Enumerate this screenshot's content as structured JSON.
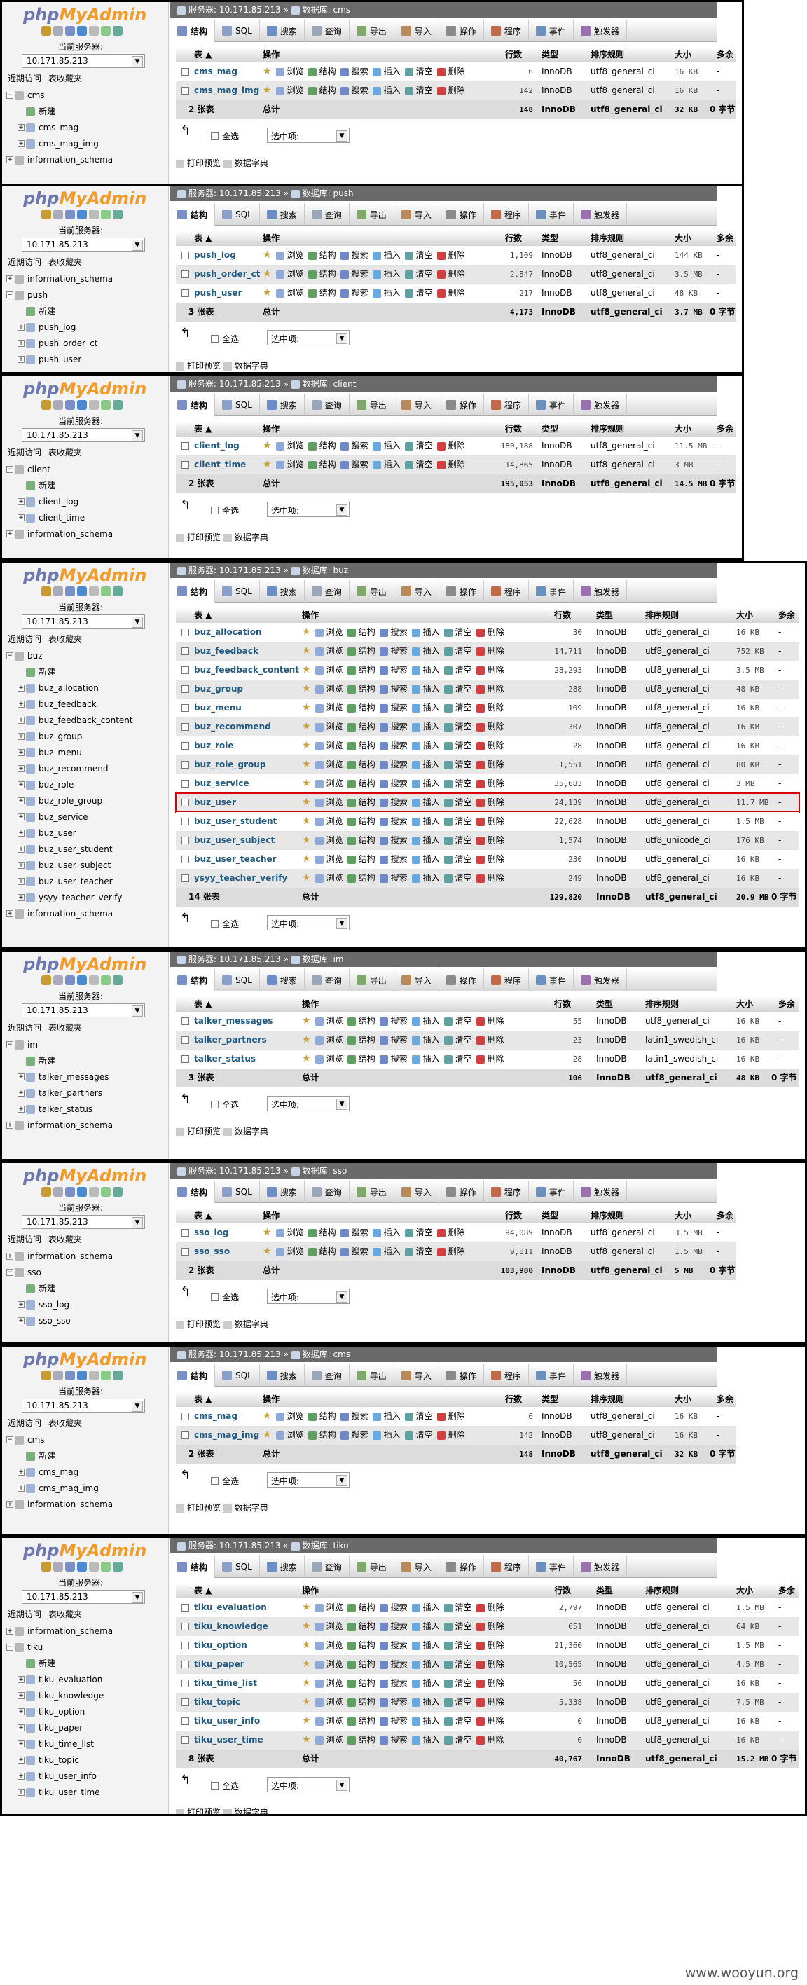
{
  "watermark": "www.wooyun.org",
  "common": {
    "logo_php": "php",
    "logo_admin": "MyAdmin",
    "server_label": "当前服务器:",
    "server_value": "10.171.85.213",
    "recent_tab": "近期访问",
    "fav_tab": "表收藏夹",
    "new_label": "新建",
    "tabs": [
      "结构",
      "SQL",
      "搜索",
      "查询",
      "导出",
      "导入",
      "操作",
      "程序",
      "事件",
      "触发器"
    ],
    "col_headers": [
      "表",
      "操作",
      "行数",
      "类型",
      "排序规则",
      "大小",
      "多余"
    ],
    "actions": [
      "浏览",
      "结构",
      "搜索",
      "插入",
      "清空",
      "删除"
    ],
    "check_all": "全选",
    "with_selected": "选中项:",
    "print_view": "打印预览",
    "data_dict": "数据字典",
    "sum_label": "总计",
    "breadcrumb_server": "服务器: 10.171.85.213",
    "breadcrumb_db_prefix": "数据库: ",
    "colors": {
      "link": "#235a81",
      "header_grad": "#d4d4d4",
      "breadcrumb": "#6a6a6a"
    }
  },
  "panels": [
    {
      "db": "cms",
      "sidebar": [
        {
          "label": "cms",
          "level": 0,
          "type": "db"
        },
        {
          "label": "新建",
          "level": 1,
          "type": "new"
        },
        {
          "label": "cms_mag",
          "level": 1,
          "type": "table"
        },
        {
          "label": "cms_mag_img",
          "level": 1,
          "type": "table"
        },
        {
          "label": "information_schema",
          "level": 0,
          "type": "db"
        }
      ],
      "tables": [
        {
          "name": "cms_mag",
          "rows": "6",
          "type": "InnoDB",
          "collation": "utf8_general_ci",
          "size": "16 KB",
          "overhead": "-"
        },
        {
          "name": "cms_mag_img",
          "rows": "142",
          "type": "InnoDB",
          "collation": "utf8_general_ci",
          "size": "16 KB",
          "overhead": "-"
        }
      ],
      "total": {
        "count": "2 张表",
        "rows": "148",
        "type": "InnoDB",
        "collation": "utf8_general_ci",
        "size": "32 KB",
        "overhead": "0 字节"
      }
    },
    {
      "db": "push",
      "sidebar": [
        {
          "label": "information_schema",
          "level": 0,
          "type": "db"
        },
        {
          "label": "push",
          "level": 0,
          "type": "db"
        },
        {
          "label": "新建",
          "level": 1,
          "type": "new"
        },
        {
          "label": "push_log",
          "level": 1,
          "type": "table"
        },
        {
          "label": "push_order_ct",
          "level": 1,
          "type": "table"
        },
        {
          "label": "push_user",
          "level": 1,
          "type": "table"
        }
      ],
      "tables": [
        {
          "name": "push_log",
          "rows": "1,109",
          "type": "InnoDB",
          "collation": "utf8_general_ci",
          "size": "144 KB",
          "overhead": "-"
        },
        {
          "name": "push_order_ct",
          "rows": "2,847",
          "type": "InnoDB",
          "collation": "utf8_general_ci",
          "size": "3.5 MB",
          "overhead": "-"
        },
        {
          "name": "push_user",
          "rows": "217",
          "type": "InnoDB",
          "collation": "utf8_general_ci",
          "size": "48 KB",
          "overhead": "-"
        }
      ],
      "total": {
        "count": "3 张表",
        "rows": "4,173",
        "type": "InnoDB",
        "collation": "utf8_general_ci",
        "size": "3.7 MB",
        "overhead": "0 字节"
      }
    },
    {
      "db": "client",
      "sidebar": [
        {
          "label": "client",
          "level": 0,
          "type": "db"
        },
        {
          "label": "新建",
          "level": 1,
          "type": "new"
        },
        {
          "label": "client_log",
          "level": 1,
          "type": "table"
        },
        {
          "label": "client_time",
          "level": 1,
          "type": "table"
        },
        {
          "label": "information_schema",
          "level": 0,
          "type": "db"
        }
      ],
      "tables": [
        {
          "name": "client_log",
          "rows": "180,188",
          "type": "InnoDB",
          "collation": "utf8_general_ci",
          "size": "11.5 MB",
          "overhead": "-"
        },
        {
          "name": "client_time",
          "rows": "14,865",
          "type": "InnoDB",
          "collation": "utf8_general_ci",
          "size": "3 MB",
          "overhead": "-"
        }
      ],
      "total": {
        "count": "2 张表",
        "rows": "195,053",
        "type": "InnoDB",
        "collation": "utf8_general_ci",
        "size": "14.5 MB",
        "overhead": "0 字节"
      }
    },
    {
      "db": "buz",
      "sidebar": [
        {
          "label": "buz",
          "level": 0,
          "type": "db"
        },
        {
          "label": "新建",
          "level": 1,
          "type": "new"
        },
        {
          "label": "buz_allocation",
          "level": 1,
          "type": "table"
        },
        {
          "label": "buz_feedback",
          "level": 1,
          "type": "table"
        },
        {
          "label": "buz_feedback_content",
          "level": 1,
          "type": "table"
        },
        {
          "label": "buz_group",
          "level": 1,
          "type": "table"
        },
        {
          "label": "buz_menu",
          "level": 1,
          "type": "table"
        },
        {
          "label": "buz_recommend",
          "level": 1,
          "type": "table"
        },
        {
          "label": "buz_role",
          "level": 1,
          "type": "table"
        },
        {
          "label": "buz_role_group",
          "level": 1,
          "type": "table"
        },
        {
          "label": "buz_service",
          "level": 1,
          "type": "table"
        },
        {
          "label": "buz_user",
          "level": 1,
          "type": "table"
        },
        {
          "label": "buz_user_student",
          "level": 1,
          "type": "table"
        },
        {
          "label": "buz_user_subject",
          "level": 1,
          "type": "table"
        },
        {
          "label": "buz_user_teacher",
          "level": 1,
          "type": "table"
        },
        {
          "label": "ysyy_teacher_verify",
          "level": 1,
          "type": "table"
        },
        {
          "label": "information_schema",
          "level": 0,
          "type": "db"
        }
      ],
      "tables": [
        {
          "name": "buz_allocation",
          "rows": "30",
          "type": "InnoDB",
          "collation": "utf8_general_ci",
          "size": "16 KB",
          "overhead": "-"
        },
        {
          "name": "buz_feedback",
          "rows": "14,711",
          "type": "InnoDB",
          "collation": "utf8_general_ci",
          "size": "752 KB",
          "overhead": "-"
        },
        {
          "name": "buz_feedback_content",
          "rows": "28,293",
          "type": "InnoDB",
          "collation": "utf8_general_ci",
          "size": "3.5 MB",
          "overhead": "-"
        },
        {
          "name": "buz_group",
          "rows": "288",
          "type": "InnoDB",
          "collation": "utf8_general_ci",
          "size": "48 KB",
          "overhead": "-"
        },
        {
          "name": "buz_menu",
          "rows": "109",
          "type": "InnoDB",
          "collation": "utf8_general_ci",
          "size": "16 KB",
          "overhead": "-"
        },
        {
          "name": "buz_recommend",
          "rows": "307",
          "type": "InnoDB",
          "collation": "utf8_general_ci",
          "size": "16 KB",
          "overhead": "-"
        },
        {
          "name": "buz_role",
          "rows": "28",
          "type": "InnoDB",
          "collation": "utf8_general_ci",
          "size": "16 KB",
          "overhead": "-"
        },
        {
          "name": "buz_role_group",
          "rows": "1,551",
          "type": "InnoDB",
          "collation": "utf8_general_ci",
          "size": "80 KB",
          "overhead": "-"
        },
        {
          "name": "buz_service",
          "rows": "35,683",
          "type": "InnoDB",
          "collation": "utf8_general_ci",
          "size": "3 MB",
          "overhead": "-"
        },
        {
          "name": "buz_user",
          "rows": "24,139",
          "type": "InnoDB",
          "collation": "utf8_general_ci",
          "size": "11.7 MB",
          "overhead": "-",
          "highlight": true
        },
        {
          "name": "buz_user_student",
          "rows": "22,628",
          "type": "InnoDB",
          "collation": "utf8_general_ci",
          "size": "1.5 MB",
          "overhead": "-"
        },
        {
          "name": "buz_user_subject",
          "rows": "1,574",
          "type": "InnoDB",
          "collation": "utf8_unicode_ci",
          "size": "176 KB",
          "overhead": "-"
        },
        {
          "name": "buz_user_teacher",
          "rows": "230",
          "type": "InnoDB",
          "collation": "utf8_general_ci",
          "size": "16 KB",
          "overhead": "-"
        },
        {
          "name": "ysyy_teacher_verify",
          "rows": "249",
          "type": "InnoDB",
          "collation": "utf8_general_ci",
          "size": "16 KB",
          "overhead": "-"
        }
      ],
      "total": {
        "count": "14 张表",
        "rows": "129,820",
        "type": "InnoDB",
        "collation": "utf8_general_ci",
        "size": "20.9 MB",
        "overhead": "0 字节"
      }
    },
    {
      "db": "im",
      "sidebar": [
        {
          "label": "im",
          "level": 0,
          "type": "db"
        },
        {
          "label": "新建",
          "level": 1,
          "type": "new"
        },
        {
          "label": "talker_messages",
          "level": 1,
          "type": "table"
        },
        {
          "label": "talker_partners",
          "level": 1,
          "type": "table"
        },
        {
          "label": "talker_status",
          "level": 1,
          "type": "table"
        },
        {
          "label": "information_schema",
          "level": 0,
          "type": "db"
        }
      ],
      "tables": [
        {
          "name": "talker_messages",
          "rows": "55",
          "type": "InnoDB",
          "collation": "utf8_general_ci",
          "size": "16 KB",
          "overhead": "-"
        },
        {
          "name": "talker_partners",
          "rows": "23",
          "type": "InnoDB",
          "collation": "latin1_swedish_ci",
          "size": "16 KB",
          "overhead": "-"
        },
        {
          "name": "talker_status",
          "rows": "28",
          "type": "InnoDB",
          "collation": "latin1_swedish_ci",
          "size": "16 KB",
          "overhead": "-"
        }
      ],
      "total": {
        "count": "3 张表",
        "rows": "106",
        "type": "InnoDB",
        "collation": "utf8_general_ci",
        "size": "48 KB",
        "overhead": "0 字节"
      }
    },
    {
      "db": "sso",
      "sidebar": [
        {
          "label": "information_schema",
          "level": 0,
          "type": "db"
        },
        {
          "label": "sso",
          "level": 0,
          "type": "db"
        },
        {
          "label": "新建",
          "level": 1,
          "type": "new"
        },
        {
          "label": "sso_log",
          "level": 1,
          "type": "table"
        },
        {
          "label": "sso_sso",
          "level": 1,
          "type": "table"
        }
      ],
      "tables": [
        {
          "name": "sso_log",
          "rows": "94,089",
          "type": "InnoDB",
          "collation": "utf8_general_ci",
          "size": "3.5 MB",
          "overhead": "-"
        },
        {
          "name": "sso_sso",
          "rows": "9,811",
          "type": "InnoDB",
          "collation": "utf8_general_ci",
          "size": "1.5 MB",
          "overhead": "-"
        }
      ],
      "total": {
        "count": "2 张表",
        "rows": "103,900",
        "type": "InnoDB",
        "collation": "utf8_general_ci",
        "size": "5 MB",
        "overhead": "0 字节"
      }
    },
    {
      "db": "cms",
      "sidebar": [
        {
          "label": "cms",
          "level": 0,
          "type": "db"
        },
        {
          "label": "新建",
          "level": 1,
          "type": "new"
        },
        {
          "label": "cms_mag",
          "level": 1,
          "type": "table"
        },
        {
          "label": "cms_mag_img",
          "level": 1,
          "type": "table"
        },
        {
          "label": "information_schema",
          "level": 0,
          "type": "db"
        }
      ],
      "tables": [
        {
          "name": "cms_mag",
          "rows": "6",
          "type": "InnoDB",
          "collation": "utf8_general_ci",
          "size": "16 KB",
          "overhead": "-"
        },
        {
          "name": "cms_mag_img",
          "rows": "142",
          "type": "InnoDB",
          "collation": "utf8_general_ci",
          "size": "16 KB",
          "overhead": "-"
        }
      ],
      "total": {
        "count": "2 张表",
        "rows": "148",
        "type": "InnoDB",
        "collation": "utf8_general_ci",
        "size": "32 KB",
        "overhead": "0 字节"
      }
    },
    {
      "db": "tiku",
      "sidebar": [
        {
          "label": "information_schema",
          "level": 0,
          "type": "db"
        },
        {
          "label": "tiku",
          "level": 0,
          "type": "db"
        },
        {
          "label": "新建",
          "level": 1,
          "type": "new"
        },
        {
          "label": "tiku_evaluation",
          "level": 1,
          "type": "table"
        },
        {
          "label": "tiku_knowledge",
          "level": 1,
          "type": "table"
        },
        {
          "label": "tiku_option",
          "level": 1,
          "type": "table"
        },
        {
          "label": "tiku_paper",
          "level": 1,
          "type": "table"
        },
        {
          "label": "tiku_time_list",
          "level": 1,
          "type": "table"
        },
        {
          "label": "tiku_topic",
          "level": 1,
          "type": "table"
        },
        {
          "label": "tiku_user_info",
          "level": 1,
          "type": "table"
        },
        {
          "label": "tiku_user_time",
          "level": 1,
          "type": "table"
        }
      ],
      "tables": [
        {
          "name": "tiku_evaluation",
          "rows": "2,797",
          "type": "InnoDB",
          "collation": "utf8_general_ci",
          "size": "1.5 MB",
          "overhead": "-"
        },
        {
          "name": "tiku_knowledge",
          "rows": "651",
          "type": "InnoDB",
          "collation": "utf8_general_ci",
          "size": "64 KB",
          "overhead": "-"
        },
        {
          "name": "tiku_option",
          "rows": "21,360",
          "type": "InnoDB",
          "collation": "utf8_general_ci",
          "size": "1.5 MB",
          "overhead": "-"
        },
        {
          "name": "tiku_paper",
          "rows": "10,565",
          "type": "InnoDB",
          "collation": "utf8_general_ci",
          "size": "4.5 MB",
          "overhead": "-"
        },
        {
          "name": "tiku_time_list",
          "rows": "56",
          "type": "InnoDB",
          "collation": "utf8_general_ci",
          "size": "16 KB",
          "overhead": "-"
        },
        {
          "name": "tiku_topic",
          "rows": "5,338",
          "type": "InnoDB",
          "collation": "utf8_general_ci",
          "size": "7.5 MB",
          "overhead": "-"
        },
        {
          "name": "tiku_user_info",
          "rows": "0",
          "type": "InnoDB",
          "collation": "utf8_general_ci",
          "size": "16 KB",
          "overhead": "-"
        },
        {
          "name": "tiku_user_time",
          "rows": "0",
          "type": "InnoDB",
          "collation": "utf8_general_ci",
          "size": "16 KB",
          "overhead": "-"
        }
      ],
      "total": {
        "count": "8 张表",
        "rows": "40,767",
        "type": "InnoDB",
        "collation": "utf8_general_ci",
        "size": "15.2 MB",
        "overhead": "0 字节"
      }
    }
  ]
}
